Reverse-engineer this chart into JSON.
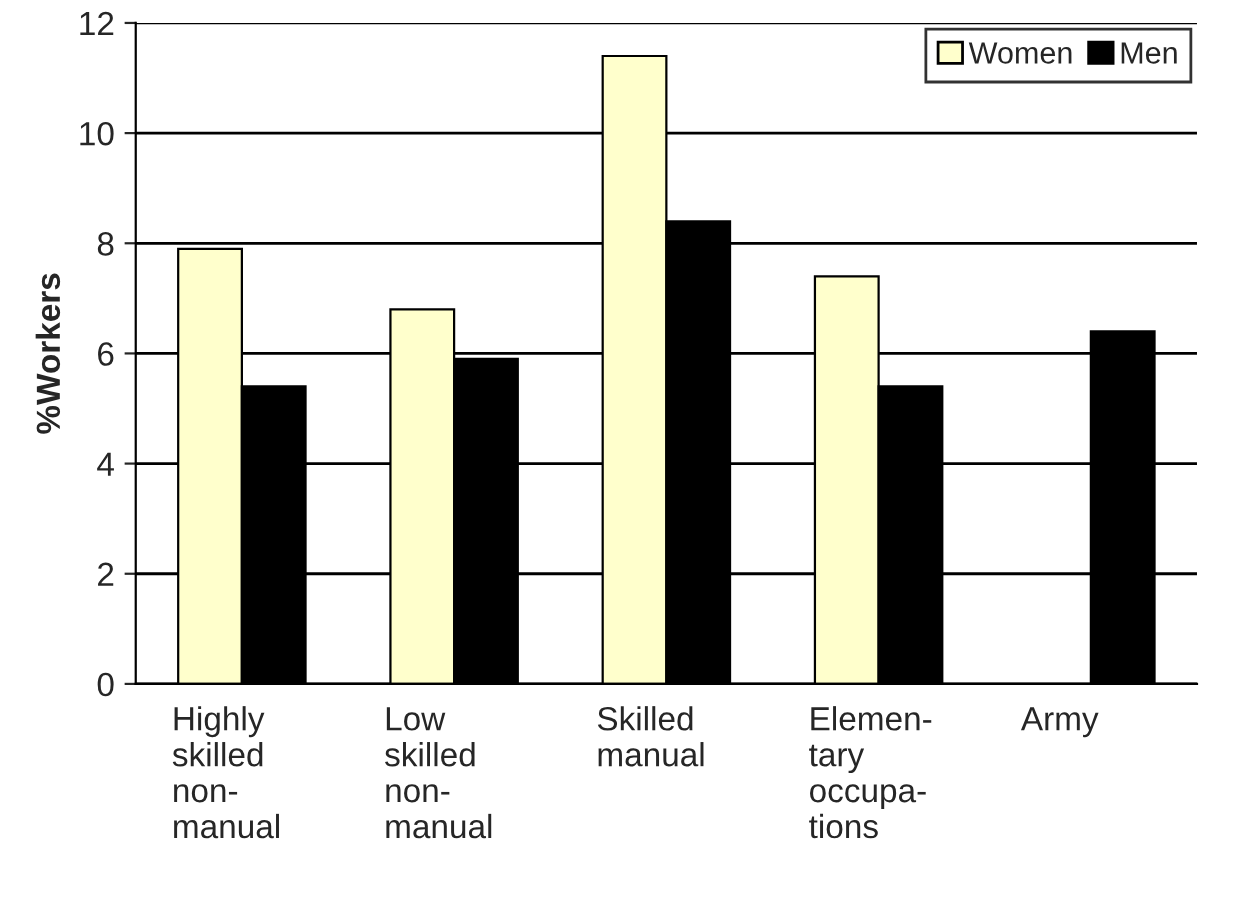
{
  "chart_data": {
    "type": "bar",
    "ylabel": "%Workers",
    "categories": [
      "Highly\nskilled\nnon-\nmanual",
      "Low\nskilled\nnon-\nmanual",
      "Skilled\nmanual",
      "Elemen-\ntary\noccupa-\ntions",
      "Army"
    ],
    "series": [
      {
        "name": "Women",
        "color": "#ffffcc",
        "values": [
          7.9,
          6.8,
          11.4,
          7.4,
          null
        ]
      },
      {
        "name": "Men",
        "color": "#000000",
        "values": [
          5.4,
          5.9,
          8.4,
          5.4,
          6.4
        ]
      }
    ],
    "ylim": [
      0,
      12
    ],
    "yticks": [
      0,
      2,
      4,
      6,
      8,
      10,
      12
    ],
    "grid": "y",
    "legend": "top right"
  }
}
